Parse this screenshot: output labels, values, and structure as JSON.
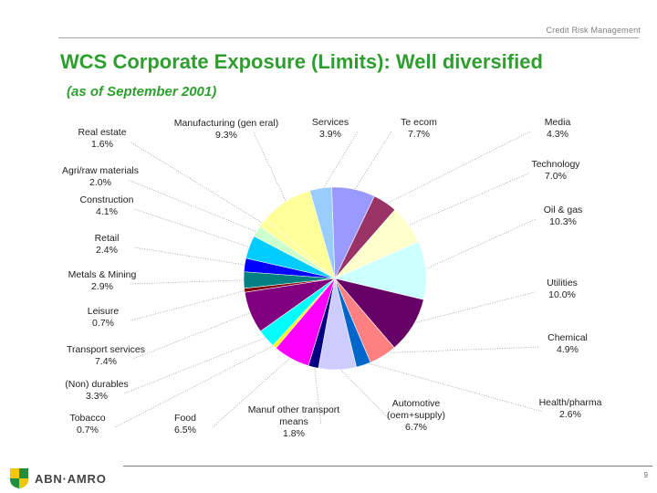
{
  "header": {
    "label": "Credit Risk Management"
  },
  "title": "WCS Corporate Exposure (Limits): Well diversified",
  "subtitle": "(as of September 2001)",
  "logo": {
    "text": "ABN·AMRO"
  },
  "page_number": "9",
  "chart_data": {
    "type": "pie",
    "title": "WCS Corporate Exposure (Limits): Well diversified",
    "unit": "%",
    "slices": [
      {
        "name": "Services",
        "label_lines": [
          "Services"
        ],
        "pct": "3.9%",
        "value": 3.9,
        "color": "#99ccff"
      },
      {
        "name": "Telecom",
        "label_lines": [
          "Te ecom"
        ],
        "pct": "7.7%",
        "value": 7.7,
        "color": "#9999ff"
      },
      {
        "name": "Media",
        "label_lines": [
          "Media"
        ],
        "pct": "4.3%",
        "value": 4.3,
        "color": "#993366"
      },
      {
        "name": "Technology",
        "label_lines": [
          "Technology"
        ],
        "pct": "7.0%",
        "value": 7.0,
        "color": "#ffffcc"
      },
      {
        "name": "Oil & gas",
        "label_lines": [
          "Oil & gas"
        ],
        "pct": "10.3%",
        "value": 10.3,
        "color": "#ccffff"
      },
      {
        "name": "Utilities",
        "label_lines": [
          "Utilities"
        ],
        "pct": "10.0%",
        "value": 10.0,
        "color": "#660066"
      },
      {
        "name": "Chemical",
        "label_lines": [
          "Chemical"
        ],
        "pct": "4.9%",
        "value": 4.9,
        "color": "#ff8080"
      },
      {
        "name": "Health/pharma",
        "label_lines": [
          "Health/pharma"
        ],
        "pct": "2.6%",
        "value": 2.6,
        "color": "#0066cc"
      },
      {
        "name": "Automotive (oem+supply)",
        "label_lines": [
          "Automotive",
          "(oem+supply)"
        ],
        "pct": "6.7%",
        "value": 6.7,
        "color": "#ccccff"
      },
      {
        "name": "Manuf other transport means",
        "label_lines": [
          "Manuf other transport",
          "means"
        ],
        "pct": "1.8%",
        "value": 1.8,
        "color": "#000080"
      },
      {
        "name": "Food",
        "label_lines": [
          "Food"
        ],
        "pct": "6.5%",
        "value": 6.5,
        "color": "#ff00ff"
      },
      {
        "name": "Tobacco",
        "label_lines": [
          "Tobacco"
        ],
        "pct": "0.7%",
        "value": 0.7,
        "color": "#ffff00"
      },
      {
        "name": "(Non) durables",
        "label_lines": [
          "(Non) durables"
        ],
        "pct": "3.3%",
        "value": 3.3,
        "color": "#00ffff"
      },
      {
        "name": "Transport services",
        "label_lines": [
          "Transport services"
        ],
        "pct": "7.4%",
        "value": 7.4,
        "color": "#800080"
      },
      {
        "name": "Leisure",
        "label_lines": [
          "Leisure"
        ],
        "pct": "0.7%",
        "value": 0.7,
        "color": "#800000"
      },
      {
        "name": "Metals & Mining",
        "label_lines": [
          "Metals & Mining"
        ],
        "pct": "2.9%",
        "value": 2.9,
        "color": "#008080"
      },
      {
        "name": "Retail",
        "label_lines": [
          "Retail"
        ],
        "pct": "2.4%",
        "value": 2.4,
        "color": "#0000ff"
      },
      {
        "name": "Construction",
        "label_lines": [
          "Construction"
        ],
        "pct": "4.1%",
        "value": 4.1,
        "color": "#00ccff"
      },
      {
        "name": "Agri/raw materials",
        "label_lines": [
          "Agri/raw materials"
        ],
        "pct": "2.0%",
        "value": 2.0,
        "color": "#ccffcc"
      },
      {
        "name": "Real estate",
        "label_lines": [
          "Real estate"
        ],
        "pct": "1.6%",
        "value": 1.6,
        "color": "#ffff99"
      },
      {
        "name": "Manufacturing (general)",
        "label_lines": [
          "Manufacturing (gen eral)"
        ],
        "pct": "9.3%",
        "value": 9.3,
        "color": "#ffff99"
      }
    ]
  }
}
